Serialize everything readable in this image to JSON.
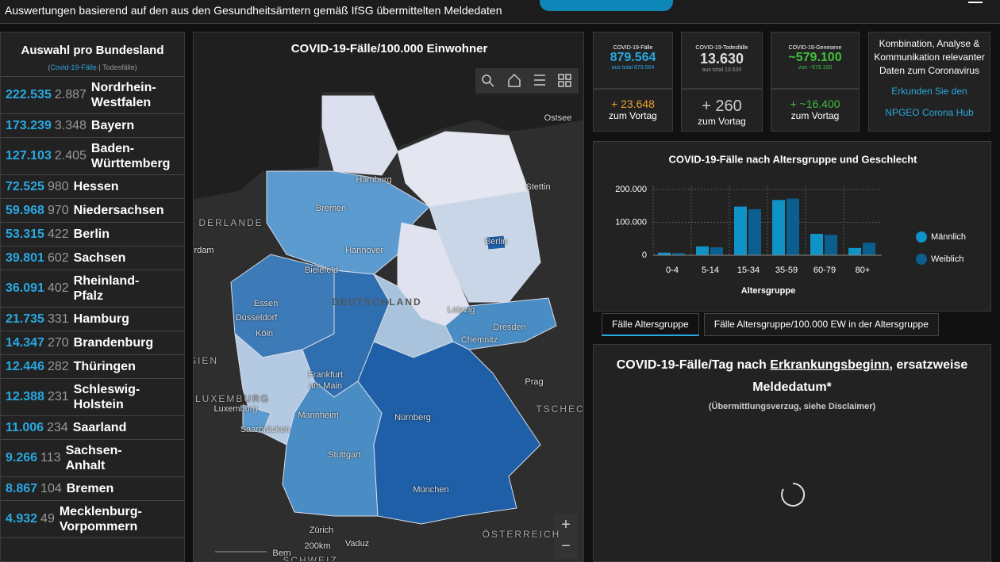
{
  "header": {
    "title": "Auswertungen basierend auf den aus den Gesundheitsämtern gemäß IfSG übermittelten Meldedaten"
  },
  "states_panel": {
    "title": "Auswahl pro Bundesland",
    "legend_open": "(",
    "legend_cases": "Covid-19-Fälle",
    "legend_sep": " | ",
    "legend_deaths": "Todesfälle",
    "legend_close": ")",
    "rows": [
      {
        "cases": "222.535",
        "deaths": "2.887",
        "name": "Nordrhein-Westfalen"
      },
      {
        "cases": "173.239",
        "deaths": "3.348",
        "name": "Bayern"
      },
      {
        "cases": "127.103",
        "deaths": "2.405",
        "name": "Baden-Württemberg"
      },
      {
        "cases": "72.525",
        "deaths": "980",
        "name": "Hessen"
      },
      {
        "cases": "59.968",
        "deaths": "970",
        "name": "Niedersachsen"
      },
      {
        "cases": "53.315",
        "deaths": "422",
        "name": "Berlin"
      },
      {
        "cases": "39.801",
        "deaths": "602",
        "name": "Sachsen"
      },
      {
        "cases": "36.091",
        "deaths": "402",
        "name": "Rheinland-Pfalz"
      },
      {
        "cases": "21.735",
        "deaths": "331",
        "name": "Hamburg"
      },
      {
        "cases": "14.347",
        "deaths": "270",
        "name": "Brandenburg"
      },
      {
        "cases": "12.446",
        "deaths": "282",
        "name": "Thüringen"
      },
      {
        "cases": "12.388",
        "deaths": "231",
        "name": "Schleswig-Holstein"
      },
      {
        "cases": "11.006",
        "deaths": "234",
        "name": "Saarland"
      },
      {
        "cases": "9.266",
        "deaths": "113",
        "name": "Sachsen-Anhalt"
      },
      {
        "cases": "8.867",
        "deaths": "104",
        "name": "Bremen"
      },
      {
        "cases": "4.932",
        "deaths": "49",
        "name": "Mecklenburg-Vorpommern"
      }
    ]
  },
  "map": {
    "title": "COVID-19-Fälle/100.000 Einwohner",
    "zoom_in": "+",
    "zoom_out": "−",
    "labels": [
      "Ostsee",
      "Hamburg",
      "Stettin",
      "Bremen",
      "DERLANDE",
      "Hannover",
      "Berlin",
      "rdam",
      "Bielefeld",
      "DEUTSCHLAND",
      "Essen",
      "Leipzig",
      "Düsseldorf",
      "Dresden",
      "Köln",
      "Chemnitz",
      "SIEN",
      "Frankfurt am Main",
      "Prag",
      "LUXEMBURG",
      "Luxemburg",
      "TSCHEC",
      "Nürnberg",
      "Mannheim",
      "Saarbrücken",
      "Stuttgart",
      "München",
      "Zürich",
      "ÖSTERREICH",
      "Vaduz",
      "200km",
      "Bern",
      "SCHWEIZ"
    ]
  },
  "kpis": [
    {
      "title": "COVID-19-Fälle",
      "value": "879.564",
      "total": "aus total 879.564",
      "delta": "+ 23.648",
      "delta_label": "zum Vortag"
    },
    {
      "title": "COVID-19-Todesfälle",
      "value": "13.630",
      "total": "aus total 13.630",
      "delta": "+ 260",
      "delta_label": "zum Vortag"
    },
    {
      "title": "COVID-19-Genesene",
      "value": "~579.100",
      "total": "von ~579.100",
      "delta": "+ ~16.400",
      "delta_label": "zum Vortag"
    }
  ],
  "info_box": {
    "text": "Kombination, Analyse & Kommunikation relevanter Daten zum Coronavirus",
    "link1": "Erkunden Sie den",
    "link2": "NPGEO Corona Hub"
  },
  "chart_data": {
    "type": "bar",
    "title": "COVID-19-Fälle nach Altersgruppe und Geschlecht",
    "x_label": "Altersgruppe",
    "categories": [
      "0-4",
      "5-14",
      "15-34",
      "35-59",
      "60-79",
      "80+"
    ],
    "series": [
      {
        "name": "Männlich",
        "color": "#0f93c7",
        "values": [
          8000,
          27000,
          148000,
          168000,
          65000,
          22000
        ]
      },
      {
        "name": "Weiblich",
        "color": "#0b5f8e",
        "values": [
          7000,
          24000,
          140000,
          172000,
          62000,
          38000
        ]
      }
    ],
    "ylim": [
      0,
      200000
    ],
    "yticks": [
      0,
      {
        "value": 100000,
        "label": "100.000"
      },
      {
        "value": 200000,
        "label": "200.000"
      }
    ],
    "grid": true
  },
  "tabs": [
    "Fälle Altersgruppe",
    "Fälle Altersgruppe/100.000 EW in der Altersgruppe"
  ],
  "daily_panel": {
    "title_a": "COVID-19-Fälle/Tag nach ",
    "title_link": "Erkrankungsbeginn",
    "title_b": ", ersatzweise Meldedatum*",
    "subtitle": "(Übermittlungsverzug, siehe Disclaimer)"
  }
}
